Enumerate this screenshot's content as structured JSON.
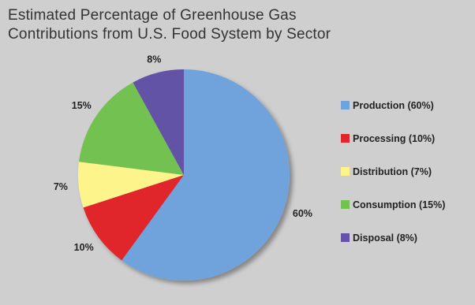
{
  "title": {
    "line1": "Estimated Percentage of Greenhouse Gas",
    "line2": "Contributions from U.S. Food System by Sector"
  },
  "chart_data": {
    "type": "pie",
    "title": "Estimated Percentage of Greenhouse Gas Contributions from U.S. Food System by Sector",
    "categories": [
      "Production",
      "Processing",
      "Distribution",
      "Consumption",
      "Disposal"
    ],
    "values": [
      60,
      10,
      7,
      15,
      8
    ],
    "slice_labels": [
      "60%",
      "10%",
      "7%",
      "15%",
      "8%"
    ],
    "legend_labels": [
      "Production (60%)",
      "Processing (10%)",
      "Distribution (7%)",
      "Consumption (15%)",
      "Disposal (8%)"
    ],
    "colors": [
      "#6fa3db",
      "#e0262b",
      "#fdf58c",
      "#73c251",
      "#6453a6"
    ],
    "legend_position": "right",
    "start": "top, clockwise"
  }
}
